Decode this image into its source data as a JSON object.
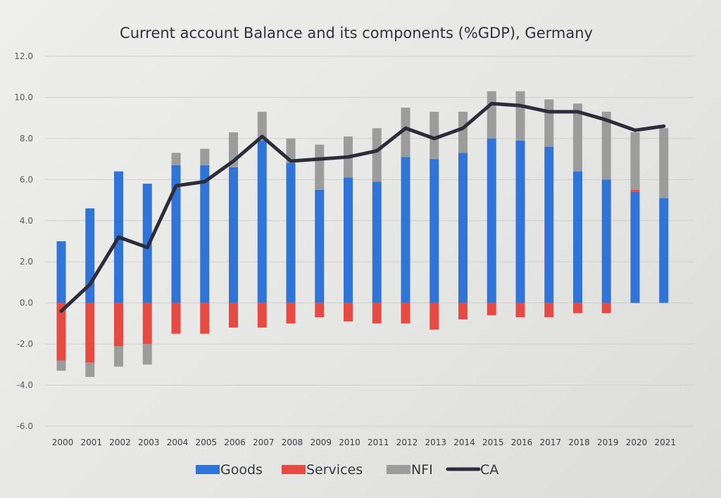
{
  "chart_data": {
    "type": "bar",
    "title": "Current account Balance and its components (%GDP), Germany",
    "xlabel": "",
    "ylabel": "",
    "stacked": true,
    "categories": [
      "2000",
      "2001",
      "2002",
      "2003",
      "2004",
      "2005",
      "2006",
      "2007",
      "2008",
      "2009",
      "2010",
      "2011",
      "2012",
      "2013",
      "2014",
      "2015",
      "2016",
      "2017",
      "2018",
      "2019",
      "2020",
      "2021"
    ],
    "y_ticks": [
      "12.0",
      "10.0",
      "8.0",
      "6.0",
      "4.0",
      "2.0",
      "0.0",
      "-2.0",
      "-4.0",
      "-6.0"
    ],
    "ylim": [
      -6,
      12
    ],
    "grid": true,
    "legend_position": "bottom",
    "series": [
      {
        "name": "Goods",
        "kind": "bar",
        "color": "#2f74d6",
        "values": [
          3.0,
          4.6,
          6.4,
          5.8,
          6.7,
          6.7,
          6.6,
          7.9,
          6.8,
          5.5,
          6.1,
          5.9,
          7.1,
          7.0,
          7.3,
          8.0,
          7.9,
          7.6,
          6.4,
          6.0,
          5.4,
          5.1
        ]
      },
      {
        "name": "Services",
        "kind": "bar",
        "color": "#e64b43",
        "values": [
          -2.8,
          -2.9,
          -2.1,
          -2.0,
          -1.5,
          -1.5,
          -1.2,
          -1.2,
          -1.0,
          -0.7,
          -0.9,
          -1.0,
          -1.0,
          -1.3,
          -0.8,
          -0.6,
          -0.7,
          -0.7,
          -0.5,
          -0.5,
          0.1,
          0.0
        ]
      },
      {
        "name": "NFI",
        "kind": "bar",
        "color": "#9c9c9c",
        "values": [
          -0.5,
          -0.7,
          -1.0,
          -1.0,
          0.6,
          0.8,
          1.7,
          1.4,
          1.2,
          2.2,
          2.0,
          2.6,
          2.4,
          2.3,
          2.0,
          2.3,
          2.4,
          2.3,
          3.3,
          3.3,
          2.8,
          3.4
        ]
      },
      {
        "name": "CA",
        "kind": "line",
        "color": "#2c2c3a",
        "values": [
          -0.4,
          0.9,
          3.2,
          2.7,
          5.7,
          5.9,
          6.9,
          8.1,
          6.9,
          7.0,
          7.1,
          7.4,
          8.5,
          8.0,
          8.5,
          9.7,
          9.6,
          9.3,
          9.3,
          8.9,
          8.4,
          8.6
        ]
      }
    ]
  }
}
